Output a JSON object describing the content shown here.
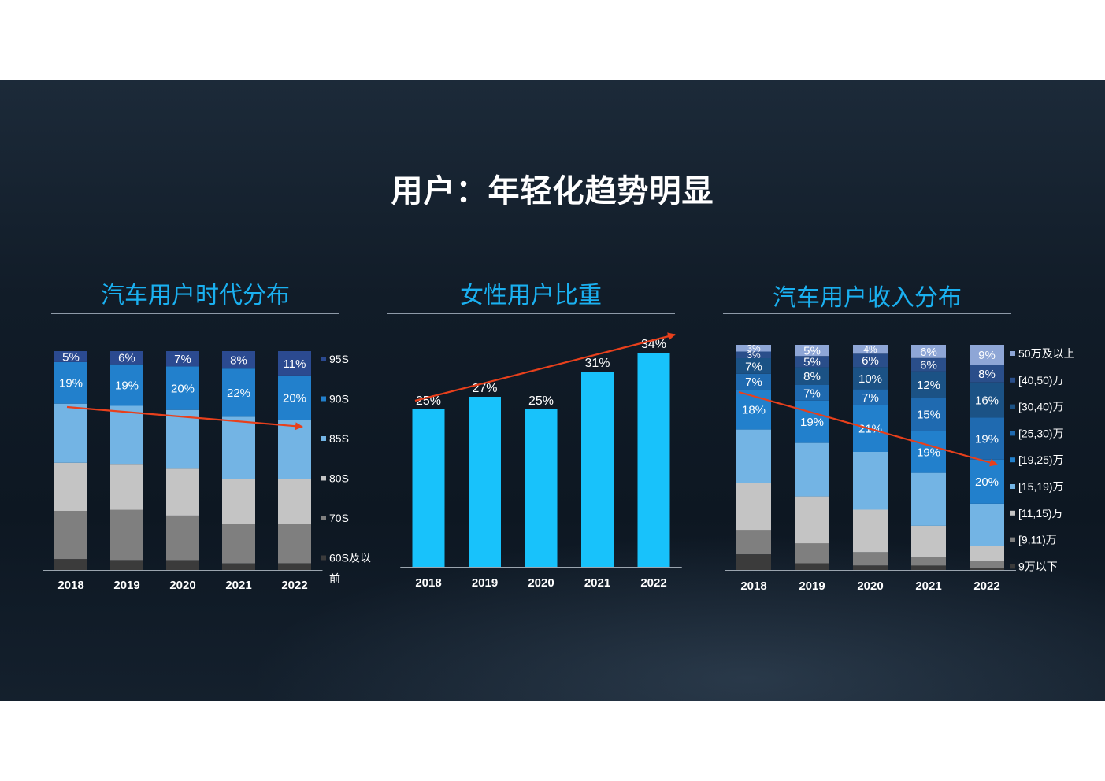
{
  "slide": {
    "title": "用户：年轻化趋势明显"
  },
  "panels": [
    {
      "title": "汽车用户时代分布"
    },
    {
      "title": "女性用户比重"
    },
    {
      "title": "汽车用户收入分布"
    }
  ],
  "colors": {
    "accent": "#1ab0f0",
    "bar_cyan": "#18c2fb",
    "trend_arrow": "#e8401c",
    "background": "#101b26"
  },
  "chart_data": [
    {
      "type": "bar",
      "stacked": "percent",
      "title": "汽车用户时代分布",
      "categories": [
        "2018",
        "2019",
        "2020",
        "2021",
        "2022"
      ],
      "series": [
        {
          "name": "60S及以前",
          "color": "#3b3b3b",
          "values": [
            5,
            4.5,
            4.5,
            3,
            3
          ],
          "labels": [
            "",
            "",
            "",
            "",
            ""
          ]
        },
        {
          "name": "70S",
          "color": "#7f7f7f",
          "values": [
            22,
            23,
            20.5,
            18,
            18
          ],
          "labels": [
            "",
            "",
            "",
            "",
            ""
          ]
        },
        {
          "name": "80S",
          "color": "#c4c4c4",
          "values": [
            22,
            21,
            21.5,
            20.5,
            20
          ],
          "labels": [
            "",
            "",
            "",
            "",
            ""
          ]
        },
        {
          "name": "85S",
          "color": "#73b4e4",
          "values": [
            27,
            26.5,
            27,
            28.5,
            27
          ],
          "labels": [
            "",
            "",
            "",
            "",
            ""
          ]
        },
        {
          "name": "90S",
          "color": "#2280cc",
          "values": [
            19,
            19,
            20,
            22,
            20
          ],
          "labels": [
            "19%",
            "19%",
            "20%",
            "22%",
            "20%"
          ]
        },
        {
          "name": "95S",
          "color": "#2b4a90",
          "values": [
            5,
            6,
            7,
            8,
            11
          ],
          "labels": [
            "5%",
            "6%",
            "7%",
            "8%",
            "11%"
          ]
        }
      ],
      "legend": "right",
      "trend": "down"
    },
    {
      "type": "bar",
      "title": "女性用户比重",
      "categories": [
        "2018",
        "2019",
        "2020",
        "2021",
        "2022"
      ],
      "values": [
        25,
        27,
        25,
        31,
        34
      ],
      "labels": [
        "25%",
        "27%",
        "25%",
        "31%",
        "34%"
      ],
      "ylim": [
        0,
        40
      ],
      "trend": "up"
    },
    {
      "type": "bar",
      "stacked": "percent",
      "title": "汽车用户收入分布",
      "categories": [
        "2018",
        "2019",
        "2020",
        "2021",
        "2022"
      ],
      "series": [
        {
          "name": "9万以下",
          "color": "#3b3b3b",
          "values": [
            7,
            3,
            2,
            2,
            1
          ],
          "labels": [
            "",
            "",
            "",
            "",
            ""
          ]
        },
        {
          "name": "[9,11)万",
          "color": "#7f7f7f",
          "values": [
            11,
            9,
            6,
            4,
            3
          ],
          "labels": [
            "",
            "",
            "",
            "",
            ""
          ]
        },
        {
          "name": "[11,15)万",
          "color": "#c4c4c4",
          "values": [
            21,
            21,
            19,
            14,
            7
          ],
          "labels": [
            "",
            "",
            "",
            "",
            ""
          ]
        },
        {
          "name": "[15,19)万",
          "color": "#73b4e4",
          "values": [
            24,
            24,
            26,
            24,
            19
          ],
          "labels": [
            "",
            "",
            "",
            "",
            ""
          ]
        },
        {
          "name": "[19,25)万",
          "color": "#2280cc",
          "values": [
            18,
            19,
            21,
            19,
            20
          ],
          "labels": [
            "18%",
            "19%",
            "21%",
            "19%",
            "20%"
          ]
        },
        {
          "name": "[25,30)万",
          "color": "#1f6ab0",
          "values": [
            7,
            7,
            7,
            15,
            19
          ],
          "labels": [
            "7%",
            "7%",
            "7%",
            "15%",
            "19%"
          ]
        },
        {
          "name": "[30,40)万",
          "color": "#1b5285",
          "values": [
            7,
            8,
            10,
            12,
            16
          ],
          "labels": [
            "7%",
            "8%",
            "10%",
            "12%",
            "16%"
          ]
        },
        {
          "name": "[40,50)万",
          "color": "#2a4e8a",
          "values": [
            3,
            5,
            6,
            6,
            8
          ],
          "labels": [
            "3%",
            "5%",
            "6%",
            "6%",
            "8%"
          ]
        },
        {
          "name": "50万及以上",
          "color": "#8ea6d6",
          "values": [
            3,
            5,
            4,
            6,
            9
          ],
          "labels": [
            "3%",
            "5%",
            "4%",
            "6%",
            "9%"
          ]
        }
      ],
      "legend": "right",
      "trend": "down"
    }
  ]
}
